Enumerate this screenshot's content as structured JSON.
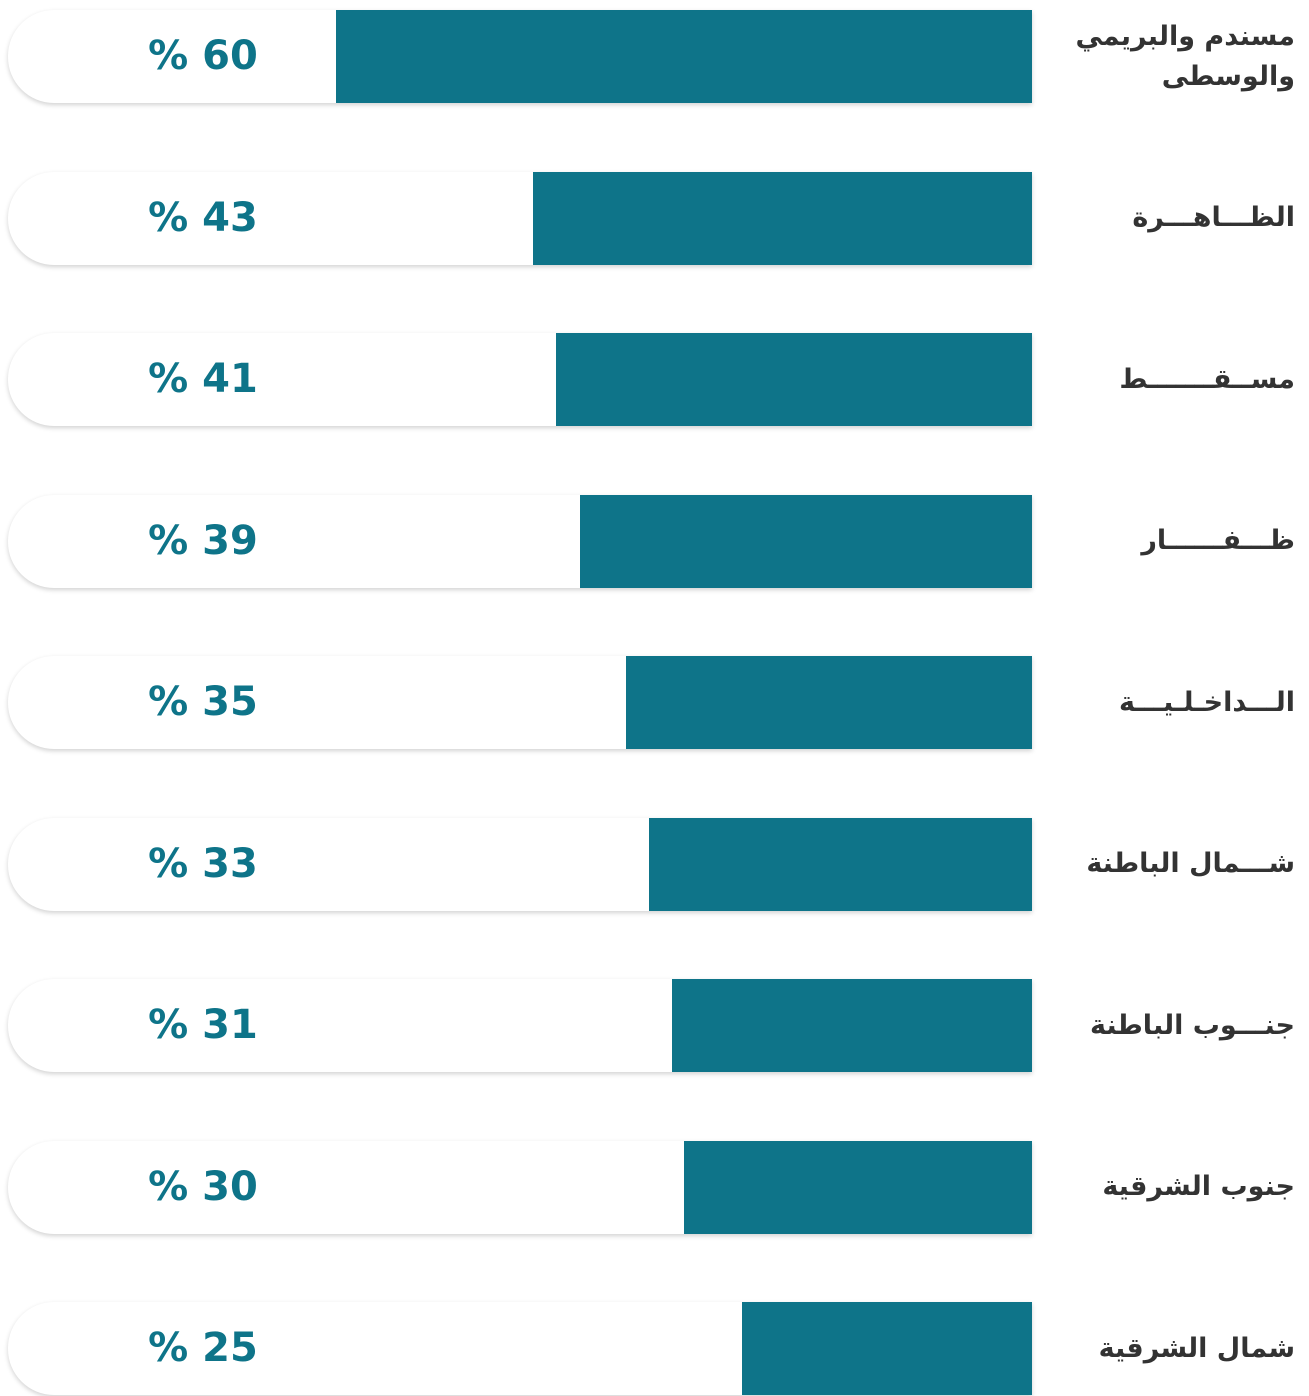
{
  "chart_data": {
    "type": "bar",
    "orientation": "horizontal",
    "categories": [
      "مسندم والبريمي والوسطى",
      "الظـــاهـــرة",
      "مســقـــــــط",
      "ظـــفــــــار",
      "الـــداخـلـيـــة",
      "شـــمال الباطنة",
      "جنـــوب الباطنة",
      "جنوب الشرقية",
      "شمال الشرقية"
    ],
    "values": [
      60,
      43,
      41,
      39,
      35,
      33,
      31,
      30,
      25
    ],
    "value_labels": [
      "% 60",
      "% 43",
      "% 41",
      "% 39",
      "% 35",
      "% 33",
      "% 31",
      "% 30",
      "% 25"
    ],
    "color": "#0e7489",
    "xlim": [
      0,
      100
    ]
  }
}
